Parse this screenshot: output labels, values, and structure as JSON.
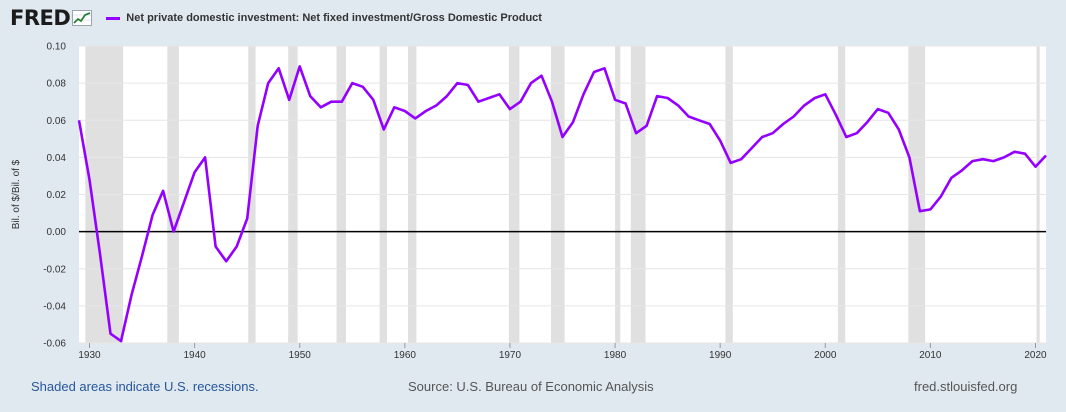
{
  "header": {
    "logo_text": "FRED",
    "logo_icon": "trend-chart-icon",
    "series_label": "Net private domestic investment: Net fixed investment/Gross Domestic Product"
  },
  "footer": {
    "note": "Shaded areas indicate U.S. recessions.",
    "source": "Source: U.S. Bureau of Economic Analysis",
    "site": "fred.stlouisfed.org"
  },
  "colors": {
    "series": "#9400ff",
    "recession": "#e0e0e0",
    "background": "#e1e9f0",
    "plot_bg": "#ffffff",
    "zero_line": "#000000"
  },
  "chart_data": {
    "type": "line",
    "ylabel": "Bil. of $/Bil. of $",
    "xlabel": "",
    "ylim": [
      -0.06,
      0.1
    ],
    "xlim": [
      1929,
      2021
    ],
    "yticks": [
      -0.06,
      -0.04,
      -0.02,
      0.0,
      0.02,
      0.04,
      0.06,
      0.08,
      0.1
    ],
    "ytick_labels": [
      "-0.06",
      "-0.04",
      "-0.02",
      "0.00",
      "0.02",
      "0.04",
      "0.06",
      "0.08",
      "0.10"
    ],
    "xticks": [
      1930,
      1940,
      1950,
      1960,
      1970,
      1980,
      1990,
      2000,
      2010,
      2020
    ],
    "xtick_labels": [
      "1930",
      "1940",
      "1950",
      "1960",
      "1970",
      "1980",
      "1990",
      "2000",
      "2010",
      "2020"
    ],
    "grid": "horizontal",
    "recessions": [
      [
        1929.6,
        1933.2
      ],
      [
        1937.4,
        1938.5
      ],
      [
        1945.1,
        1945.8
      ],
      [
        1948.9,
        1949.8
      ],
      [
        1953.5,
        1954.4
      ],
      [
        1957.6,
        1958.3
      ],
      [
        1960.3,
        1961.1
      ],
      [
        1969.9,
        1970.9
      ],
      [
        1973.9,
        1975.2
      ],
      [
        1980.0,
        1980.5
      ],
      [
        1981.5,
        1982.9
      ],
      [
        1990.5,
        1991.2
      ],
      [
        2001.2,
        2001.9
      ],
      [
        2007.9,
        2009.5
      ],
      [
        2020.1,
        2020.4
      ]
    ],
    "series": [
      {
        "name": "Net private domestic investment: Net fixed investment/Gross Domestic Product",
        "x": [
          1929,
          1930,
          1931,
          1932,
          1933,
          1934,
          1935,
          1936,
          1937,
          1938,
          1939,
          1940,
          1941,
          1942,
          1943,
          1944,
          1945,
          1946,
          1947,
          1948,
          1949,
          1950,
          1951,
          1952,
          1953,
          1954,
          1955,
          1956,
          1957,
          1958,
          1959,
          1960,
          1961,
          1962,
          1963,
          1964,
          1965,
          1966,
          1967,
          1968,
          1969,
          1970,
          1971,
          1972,
          1973,
          1974,
          1975,
          1976,
          1977,
          1978,
          1979,
          1980,
          1981,
          1982,
          1983,
          1984,
          1985,
          1986,
          1987,
          1988,
          1989,
          1990,
          1991,
          1992,
          1993,
          1994,
          1995,
          1996,
          1997,
          1998,
          1999,
          2000,
          2001,
          2002,
          2003,
          2004,
          2005,
          2006,
          2007,
          2008,
          2009,
          2010,
          2011,
          2012,
          2013,
          2014,
          2015,
          2016,
          2017,
          2018,
          2019,
          2020,
          2021
        ],
        "values": [
          0.06,
          0.028,
          -0.012,
          -0.055,
          -0.059,
          -0.034,
          -0.013,
          0.009,
          0.022,
          0.0,
          0.016,
          0.032,
          0.04,
          -0.008,
          -0.016,
          -0.008,
          0.007,
          0.057,
          0.08,
          0.088,
          0.071,
          0.089,
          0.073,
          0.067,
          0.07,
          0.07,
          0.08,
          0.078,
          0.071,
          0.055,
          0.067,
          0.065,
          0.061,
          0.065,
          0.068,
          0.073,
          0.08,
          0.079,
          0.07,
          0.072,
          0.074,
          0.066,
          0.07,
          0.08,
          0.084,
          0.07,
          0.051,
          0.059,
          0.074,
          0.086,
          0.088,
          0.071,
          0.069,
          0.053,
          0.057,
          0.073,
          0.072,
          0.068,
          0.062,
          0.06,
          0.058,
          0.049,
          0.037,
          0.039,
          0.045,
          0.051,
          0.053,
          0.058,
          0.062,
          0.068,
          0.072,
          0.074,
          0.063,
          0.051,
          0.053,
          0.059,
          0.066,
          0.064,
          0.055,
          0.04,
          0.011,
          0.012,
          0.019,
          0.029,
          0.033,
          0.038,
          0.039,
          0.038,
          0.04,
          0.043,
          0.042,
          0.035,
          0.041
        ]
      }
    ]
  }
}
